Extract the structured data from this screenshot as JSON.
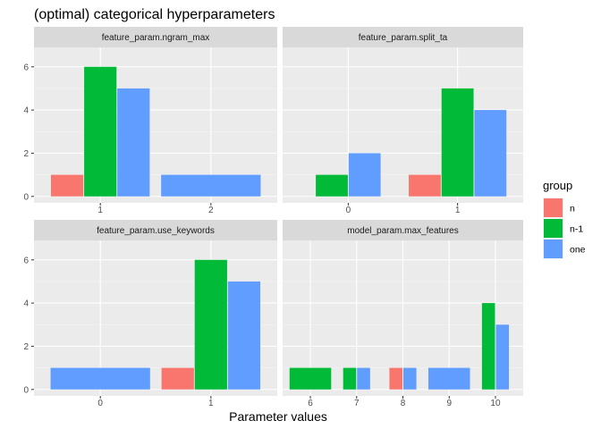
{
  "chart_data": {
    "type": "bar",
    "title": "(optimal) categorical hyperparameters",
    "xlabel": "Parameter values",
    "ylabel": "",
    "ylim": [
      -0.3,
      6.9
    ],
    "y_ticks": [
      0,
      2,
      4,
      6
    ],
    "grid": true,
    "legend": {
      "title": "group",
      "placement": "right",
      "entries": [
        {
          "name": "n",
          "color": "#F8766D"
        },
        {
          "name": "n-1",
          "color": "#00BA38"
        },
        {
          "name": "one",
          "color": "#619CFF"
        }
      ]
    },
    "facets": [
      {
        "name": "feature_param.ngram_max",
        "categories": [
          "1",
          "2"
        ],
        "bars": [
          {
            "category": "1",
            "group": "n",
            "value": 1
          },
          {
            "category": "1",
            "group": "n-1",
            "value": 6
          },
          {
            "category": "1",
            "group": "one",
            "value": 5
          },
          {
            "category": "2",
            "group": "one",
            "value": 1
          }
        ]
      },
      {
        "name": "feature_param.split_ta",
        "categories": [
          "0",
          "1"
        ],
        "bars": [
          {
            "category": "0",
            "group": "n-1",
            "value": 1
          },
          {
            "category": "0",
            "group": "one",
            "value": 2
          },
          {
            "category": "1",
            "group": "n",
            "value": 1
          },
          {
            "category": "1",
            "group": "n-1",
            "value": 5
          },
          {
            "category": "1",
            "group": "one",
            "value": 4
          }
        ]
      },
      {
        "name": "feature_param.use_keywords",
        "categories": [
          "0",
          "1"
        ],
        "bars": [
          {
            "category": "0",
            "group": "one",
            "value": 1
          },
          {
            "category": "1",
            "group": "n",
            "value": 1
          },
          {
            "category": "1",
            "group": "n-1",
            "value": 6
          },
          {
            "category": "1",
            "group": "one",
            "value": 5
          }
        ]
      },
      {
        "name": "model_param.max_features",
        "categories": [
          "6",
          "7",
          "8",
          "9",
          "10"
        ],
        "bars": [
          {
            "category": "6",
            "group": "n-1",
            "value": 1
          },
          {
            "category": "7",
            "group": "n-1",
            "value": 1
          },
          {
            "category": "7",
            "group": "one",
            "value": 1
          },
          {
            "category": "8",
            "group": "n",
            "value": 1
          },
          {
            "category": "8",
            "group": "one",
            "value": 1
          },
          {
            "category": "9",
            "group": "one",
            "value": 1
          },
          {
            "category": "10",
            "group": "n-1",
            "value": 4
          },
          {
            "category": "10",
            "group": "one",
            "value": 3
          }
        ]
      }
    ]
  }
}
